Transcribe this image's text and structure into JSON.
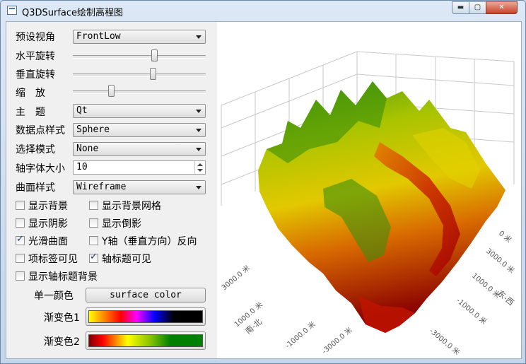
{
  "window": {
    "title": "Q3DSurface绘制高程图",
    "min": "▬",
    "max": "▢",
    "close": "✕"
  },
  "panel": {
    "preset_label": "预设视角",
    "preset_value": "FrontLow",
    "hrot_label": "水平旋转",
    "hrot_value": 0.62,
    "vrot_label": "垂直旋转",
    "vrot_value": 0.61,
    "zoom_label": "缩　放",
    "zoom_value": 0.28,
    "theme_label": "主　题",
    "theme_value": "Qt",
    "point_style_label": "数据点样式",
    "point_style_value": "Sphere",
    "select_mode_label": "选择模式",
    "select_mode_value": "None",
    "font_size_label": "轴字体大小",
    "font_size_value": "10",
    "surface_style_label": "曲面样式",
    "surface_style_value": "Wireframe",
    "checks": [
      {
        "label": "显示背景",
        "checked": false
      },
      {
        "label": "显示背景网格",
        "checked": false
      },
      {
        "label": "显示阴影",
        "checked": false
      },
      {
        "label": "显示倒影",
        "checked": false
      },
      {
        "label": "光滑曲面",
        "checked": true
      },
      {
        "label": "Y轴（垂直方向）反向",
        "checked": false
      },
      {
        "label": "项标签可见",
        "checked": false
      },
      {
        "label": "轴标题可见",
        "checked": true
      },
      {
        "label": "显示轴标题背景",
        "checked": false
      }
    ],
    "single_color_label": "单一颜色",
    "surface_color_button": "surface color",
    "gradient1_label": "渐变色1",
    "gradient2_label": "渐变色2"
  },
  "plot": {
    "axis_left_ticks": [
      "3000.0 米",
      "1000.0 米",
      "-1000.0 米",
      "-3000.0 米"
    ],
    "axis_left_title": "南-北",
    "axis_right_ticks": [
      "3000.0 米",
      "1000.0 米",
      "-1000.0 米",
      "-3000.0 米"
    ],
    "axis_right_title": "东-西",
    "axis_right_top": "0 米"
  }
}
